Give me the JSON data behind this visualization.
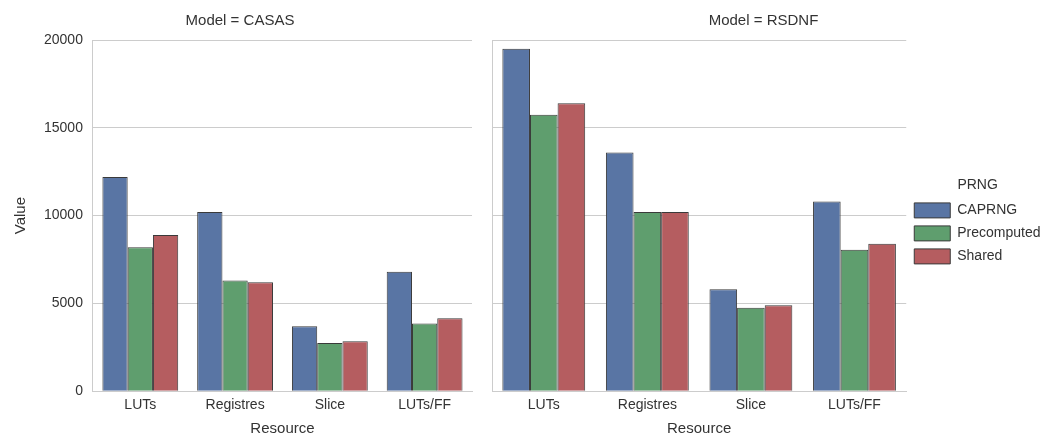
{
  "chart_data": [
    {
      "type": "bar",
      "title": "Model = CASAS",
      "xlabel": "Resource",
      "ylabel": "Value",
      "categories": [
        "LUTs",
        "Registres",
        "Slice",
        "LUTs/FF"
      ],
      "series": [
        {
          "color": "#5975a4",
          "values": [
            12200,
            10200,
            3700,
            6800
          ]
        },
        {
          "color": "#5f9e6e",
          "values": [
            8200,
            6300,
            2750,
            3850
          ]
        },
        {
          "color": "#b55d60",
          "values": [
            8900,
            6200,
            2850,
            4150
          ]
        }
      ],
      "ylim": [
        0,
        20000
      ],
      "yticks": [
        0,
        5000,
        10000,
        15000,
        20000
      ],
      "grid": "y",
      "legend": false
    },
    {
      "type": "bar",
      "title": "Model = RSDNF",
      "xlabel": "Resource",
      "legend_title": "PRNG",
      "categories": [
        "LUTs",
        "Registres",
        "Slice",
        "LUTs/FF"
      ],
      "series": [
        {
          "name": "CAPRNG",
          "color": "#5975a4",
          "values": [
            19500,
            13600,
            5800,
            10800
          ]
        },
        {
          "name": "Precomputed",
          "color": "#5f9e6e",
          "values": [
            15750,
            10200,
            4750,
            8050
          ]
        },
        {
          "name": "Shared",
          "color": "#b55d60",
          "values": [
            16400,
            10200,
            4900,
            8400
          ]
        }
      ],
      "ylim": [
        0,
        20000
      ],
      "yticks": [
        0,
        5000,
        10000,
        15000,
        20000
      ],
      "grid": "y",
      "legend": "right",
      "tick_labels": "x"
    }
  ]
}
